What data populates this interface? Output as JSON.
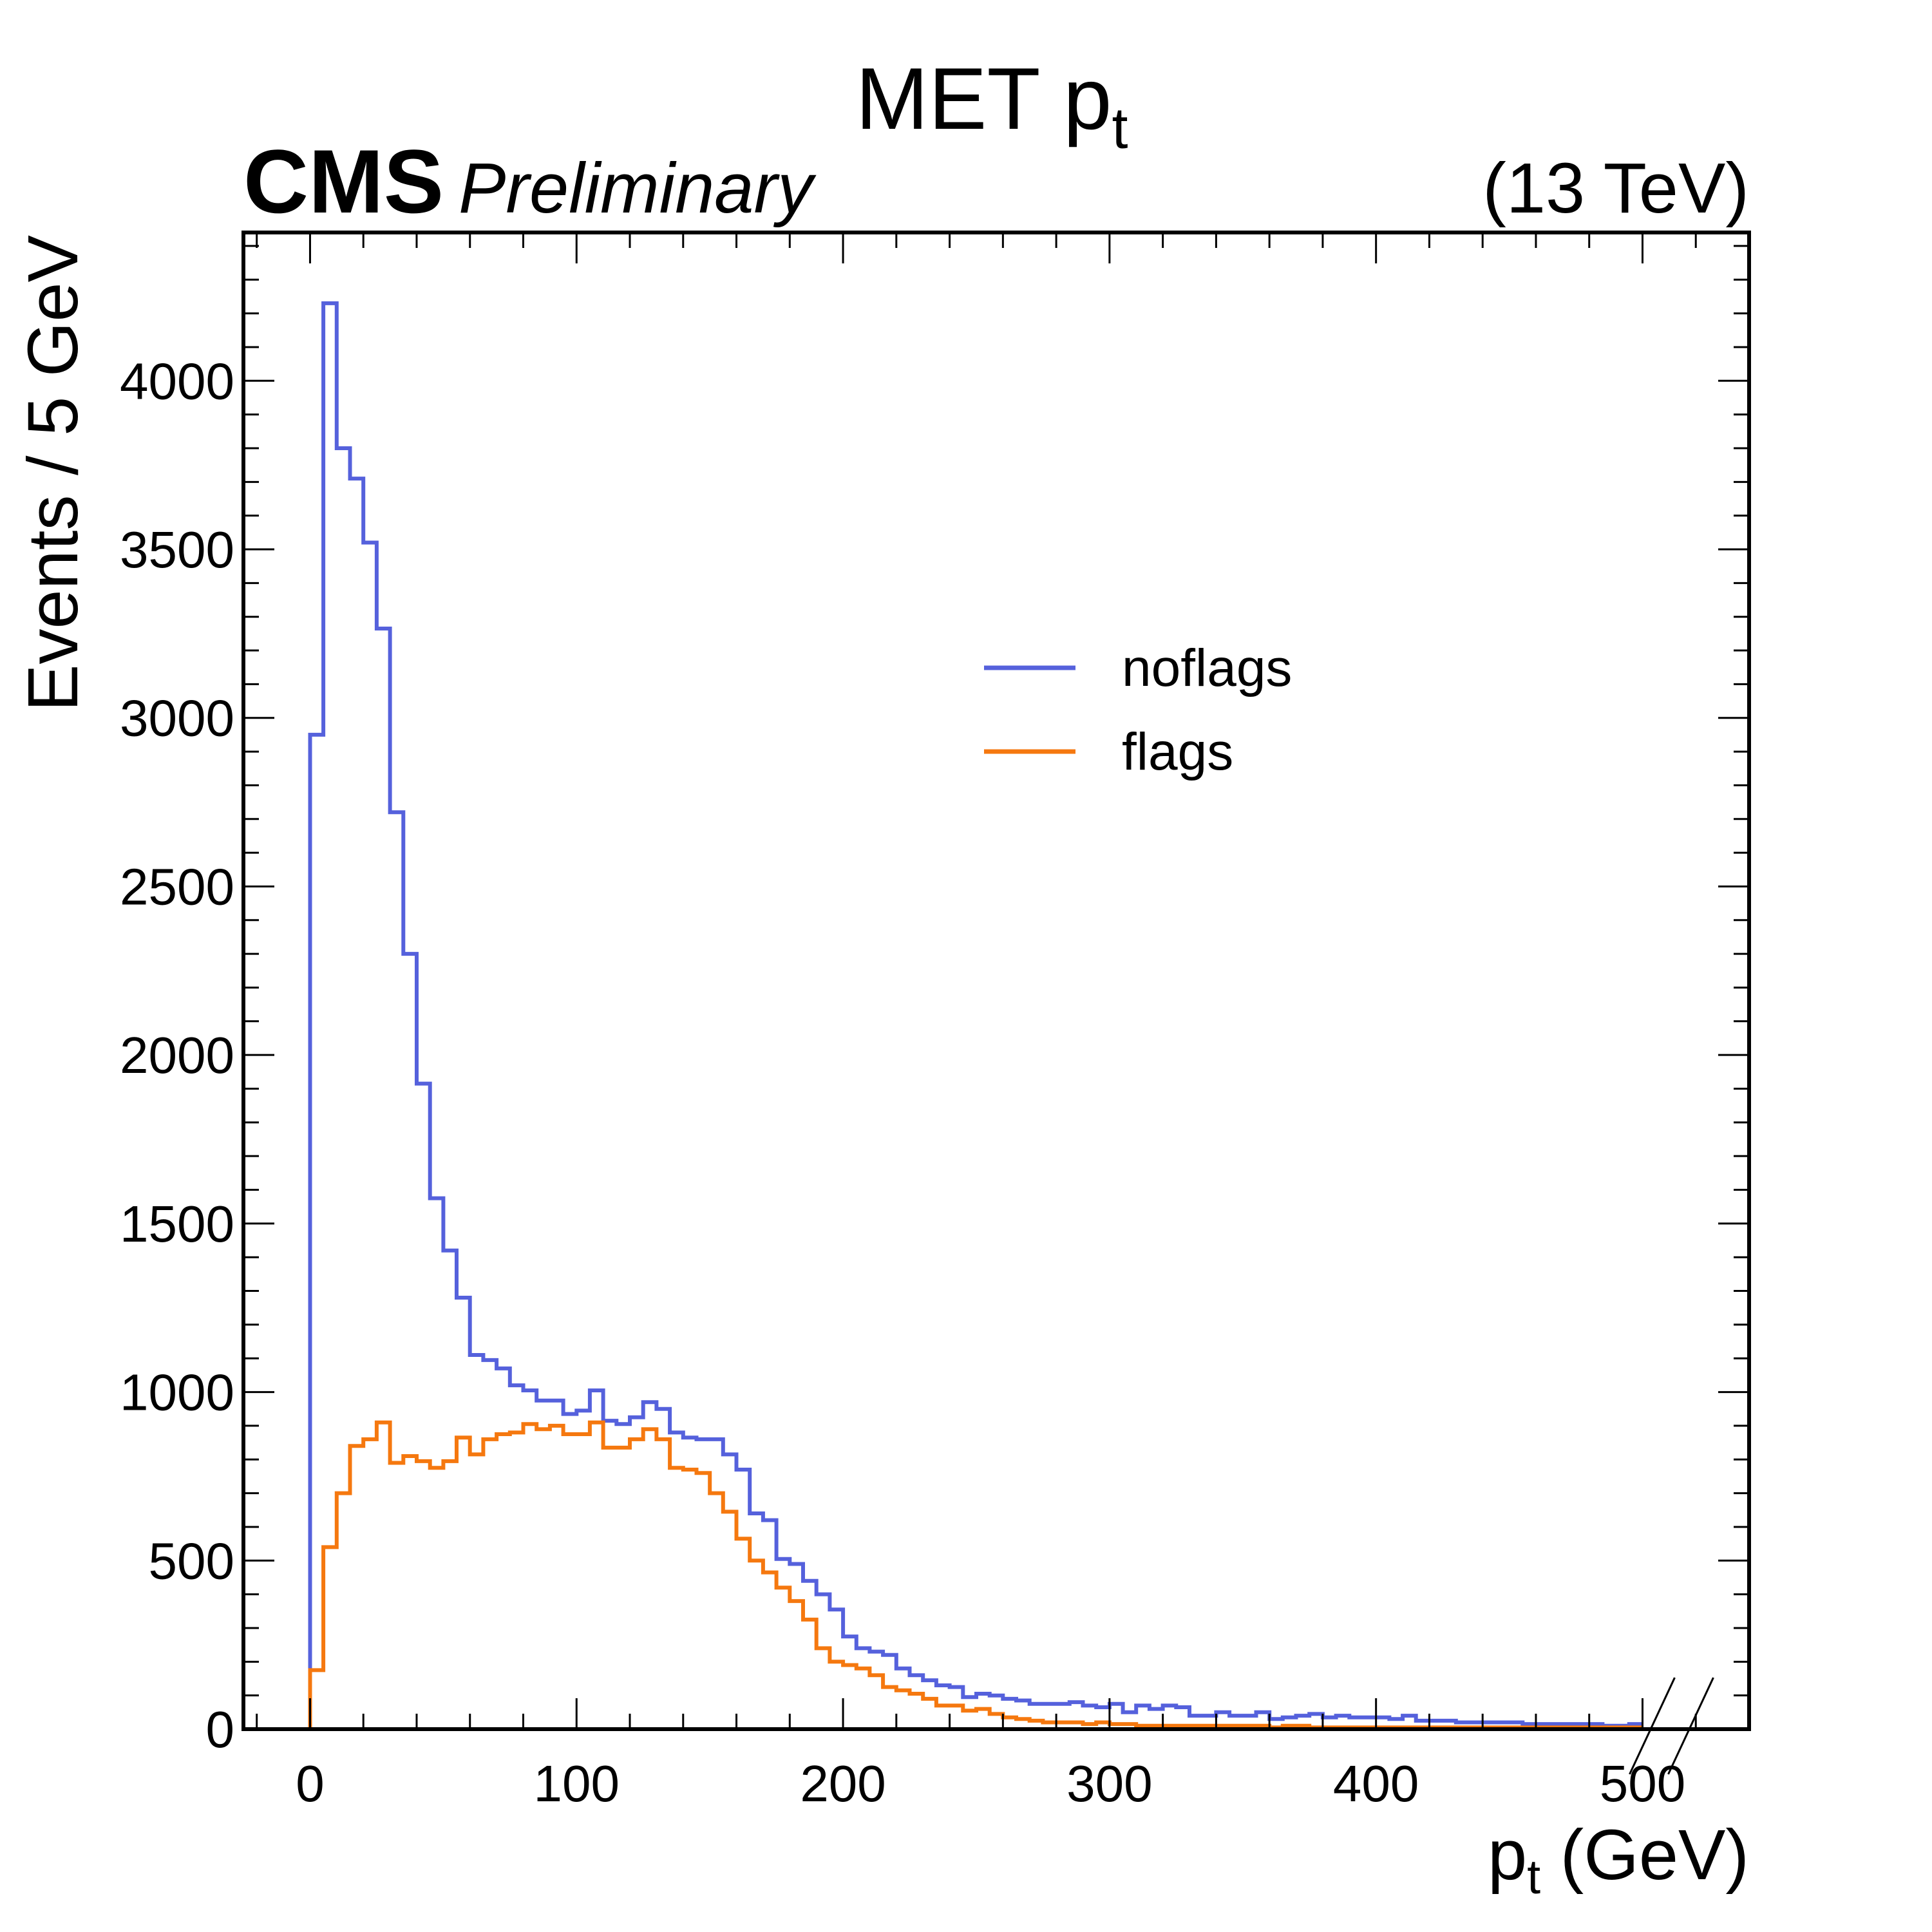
{
  "chart_data": {
    "type": "histogram",
    "title": "MET p",
    "title_subscript": "t",
    "experiment": "CMS",
    "experiment_status": "Preliminary",
    "energy_label": "(13 TeV)",
    "xlabel": "p",
    "xlabel_subscript": "t",
    "xlabel_suffix": " (GeV)",
    "ylabel": "Events / 5 GeV",
    "xlim": [
      -25,
      540
    ],
    "ylim": [
      0,
      4440
    ],
    "bin_width": 5,
    "bin_start": 0,
    "x_ticks": [
      "0",
      "100",
      "200",
      "300",
      "400",
      "500"
    ],
    "y_ticks": [
      "0",
      "500",
      "1000",
      "1500",
      "2000",
      "2500",
      "3000",
      "3500",
      "4000"
    ],
    "grid": false,
    "legend_position": "upper-middle-right",
    "overflow_marker_x": 500,
    "series": [
      {
        "name": "noflags",
        "color": "#5561dc",
        "values": [
          2950,
          4230,
          3800,
          3710,
          3520,
          3265,
          2720,
          2300,
          1915,
          1575,
          1420,
          1280,
          1110,
          1095,
          1070,
          1020,
          1005,
          975,
          975,
          935,
          945,
          1005,
          915,
          905,
          925,
          970,
          950,
          880,
          865,
          860,
          860,
          815,
          770,
          640,
          620,
          505,
          490,
          440,
          400,
          355,
          275,
          240,
          230,
          220,
          180,
          160,
          145,
          130,
          125,
          95,
          105,
          100,
          90,
          85,
          75,
          75,
          75,
          80,
          70,
          65,
          75,
          50,
          70,
          60,
          70,
          65,
          40,
          40,
          50,
          40,
          40,
          50,
          30,
          35,
          40,
          45,
          35,
          40,
          35,
          35,
          35,
          30,
          40,
          25,
          25,
          25,
          20,
          20,
          20,
          20,
          20,
          15,
          15,
          15,
          15,
          15,
          15,
          10,
          10,
          15
        ]
      },
      {
        "name": "flags",
        "color": "#f5780f",
        "values": [
          175,
          540,
          700,
          840,
          860,
          910,
          790,
          810,
          795,
          775,
          795,
          865,
          815,
          860,
          875,
          880,
          905,
          890,
          900,
          875,
          875,
          910,
          835,
          835,
          860,
          890,
          860,
          775,
          770,
          760,
          700,
          645,
          565,
          500,
          465,
          420,
          380,
          325,
          240,
          200,
          190,
          180,
          160,
          125,
          115,
          105,
          90,
          70,
          70,
          55,
          60,
          45,
          35,
          30,
          25,
          20,
          20,
          20,
          15,
          20,
          15,
          15,
          10,
          10,
          10,
          10,
          10,
          10,
          10,
          10,
          10,
          10,
          5,
          10,
          10,
          5,
          5,
          5,
          5,
          5,
          5,
          5,
          5,
          5,
          5,
          5,
          5,
          5,
          5,
          5,
          5,
          5,
          5,
          5,
          5,
          5,
          5,
          5,
          5,
          5
        ]
      }
    ]
  }
}
